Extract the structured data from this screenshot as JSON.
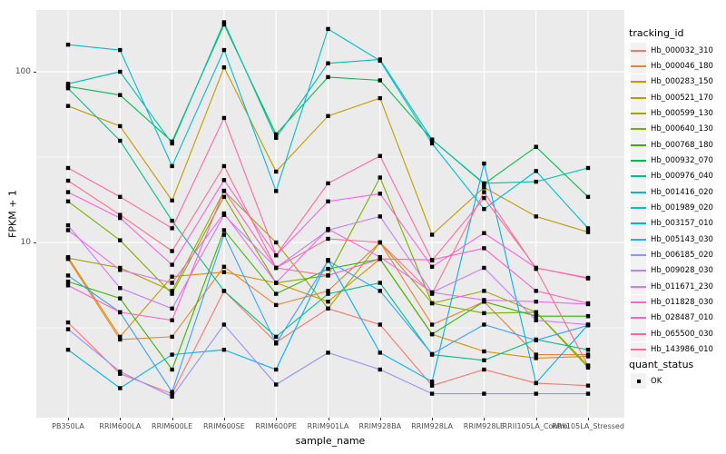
{
  "figure": {
    "panel_bg": "#EBEBEB",
    "grid_color": "#FFFFFF",
    "axis_text_color": "#4D4D4D",
    "marker_color": "#000000"
  },
  "axes": {
    "x_title": "sample_name",
    "y_title": "FPKM + 1",
    "y_tick_labels": [
      "100",
      "10"
    ],
    "y_tick_values": [
      100,
      10
    ],
    "y_minor_values": [
      31.6,
      3.16
    ]
  },
  "legend": {
    "tracking_title": "tracking_id",
    "quant_title": "quant_status",
    "quant_ok_label": "OK"
  },
  "chart_data": {
    "type": "line",
    "y_scale": "log10",
    "ylim": [
      0.94,
      230
    ],
    "xlabel": "sample_name",
    "ylabel": "FPKM + 1",
    "grid": true,
    "legend_position": "right",
    "marker": "filled-black-square",
    "x_categories": [
      "PB350LA",
      "RRIM600LA",
      "RRIM600LE",
      "RRIM600SE",
      "RRIM600PE",
      "RRIM901LA",
      "RRIM928BA",
      "RRIM928LA",
      "RRIM928LE",
      "RRII105LA_Control",
      "RRII105LA_Stressed"
    ],
    "series": [
      {
        "name": "Hb_000032_310",
        "color": "#F8766D",
        "values": [
          3.4,
          1.7,
          1.3,
          5.2,
          2.6,
          4.1,
          3.3,
          1.45,
          1.8,
          1.5,
          1.45
        ]
      },
      {
        "name": "Hb_000046_180",
        "color": "#EA8331",
        "values": [
          8.0,
          2.7,
          2.8,
          7.2,
          4.3,
          5.2,
          10.0,
          3.3,
          4.5,
          2.2,
          2.2
        ]
      },
      {
        "name": "Hb_000283_150",
        "color": "#D89000",
        "values": [
          8.2,
          2.8,
          6.3,
          6.7,
          5.8,
          4.5,
          8.0,
          2.9,
          2.3,
          2.1,
          2.15
        ]
      },
      {
        "name": "Hb_000521_170",
        "color": "#C09B00",
        "values": [
          63,
          48,
          17.6,
          106,
          26,
          55,
          70,
          11.1,
          21,
          14.2,
          11.5
        ]
      },
      {
        "name": "Hb_000599_130",
        "color": "#A3A500",
        "values": [
          8.1,
          7.1,
          5.2,
          20,
          10,
          4.1,
          10,
          4.4,
          5.2,
          3.9,
          1.9
        ]
      },
      {
        "name": "Hb_000640_130",
        "color": "#7CAE00",
        "values": [
          17.4,
          10.3,
          5.0,
          18.5,
          5.8,
          6.4,
          24,
          4.4,
          3.85,
          3.9,
          1.85
        ]
      },
      {
        "name": "Hb_000768_180",
        "color": "#39B600",
        "values": [
          5.9,
          4.7,
          1.8,
          11.8,
          5.0,
          7.0,
          8.0,
          2.9,
          4.5,
          3.7,
          3.7
        ]
      },
      {
        "name": "Hb_000932_070",
        "color": "#00BB4E",
        "values": [
          82,
          73,
          39,
          189,
          43,
          93,
          89,
          40,
          22,
          36.3,
          18.5
        ]
      },
      {
        "name": "Hb_000976_040",
        "color": "#00C087",
        "values": [
          80,
          39.4,
          13.4,
          5.2,
          2.8,
          5.0,
          5.8,
          2.2,
          2.04,
          2.7,
          2.35
        ]
      },
      {
        "name": "Hb_001416_020",
        "color": "#00C0AF",
        "values": [
          85,
          100,
          38,
          195,
          41,
          112,
          118,
          40,
          22.2,
          22.7,
          27.3
        ]
      },
      {
        "name": "Hb_001989_020",
        "color": "#00BCD8",
        "values": [
          144,
          134,
          28,
          134,
          20,
          178,
          116,
          38,
          15.7,
          26.2,
          12.1
        ]
      },
      {
        "name": "Hb_003157_010",
        "color": "#00B0F6",
        "values": [
          2.35,
          1.4,
          2.2,
          2.35,
          1.8,
          7.9,
          2.26,
          1.53,
          29,
          1.5,
          3.3
        ]
      },
      {
        "name": "Hb_005143_030",
        "color": "#35A2FF",
        "values": [
          6.4,
          3.9,
          1.33,
          11.1,
          2.56,
          7.8,
          5.2,
          2.22,
          3.3,
          2.67,
          3.27
        ]
      },
      {
        "name": "Hb_006185_020",
        "color": "#9590FF",
        "values": [
          3.1,
          1.75,
          1.25,
          3.3,
          1.47,
          2.26,
          1.8,
          1.3,
          1.3,
          1.3,
          1.3
        ]
      },
      {
        "name": "Hb_009028_030",
        "color": "#C77CFF",
        "values": [
          12.6,
          5.4,
          4.1,
          14.5,
          7.1,
          11.8,
          14.2,
          5.1,
          7.1,
          3.5,
          3.3
        ]
      },
      {
        "name": "Hb_011671_230",
        "color": "#E76BF3",
        "values": [
          11.8,
          6.9,
          5.8,
          14.8,
          5.8,
          12.0,
          8.2,
          5.1,
          4.6,
          4.5,
          4.35
        ]
      },
      {
        "name": "Hb_011828_030",
        "color": "#FA62DB",
        "values": [
          19.7,
          13.9,
          7.4,
          23.2,
          8.4,
          17.4,
          19.3,
          7.2,
          11.35,
          7.1,
          6.15
        ]
      },
      {
        "name": "Hb_028487_010",
        "color": "#FF61C3",
        "values": [
          5.6,
          3.9,
          3.5,
          20.1,
          7.1,
          6.4,
          8.0,
          7.9,
          9.25,
          5.2,
          4.4
        ]
      },
      {
        "name": "Hb_065500_030",
        "color": "#FF67A4",
        "values": [
          27.3,
          18.5,
          12.1,
          53.6,
          8.4,
          22.2,
          32.1,
          7.85,
          18.2,
          7.1,
          6.2
        ]
      },
      {
        "name": "Hb_143986_010",
        "color": "#FF6C90",
        "values": [
          23,
          14.5,
          8.9,
          28,
          7.1,
          10.5,
          10,
          5.0,
          19.7,
          7.0,
          1.9
        ]
      }
    ]
  }
}
